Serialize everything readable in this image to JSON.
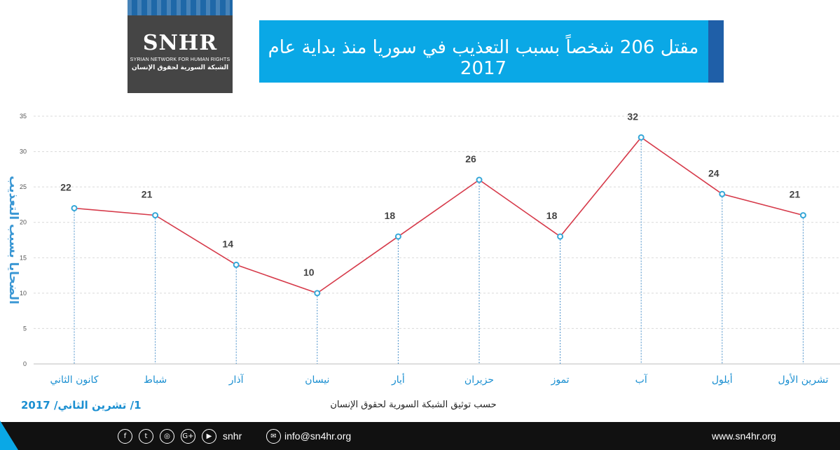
{
  "logo": {
    "name": "SNHR",
    "english": "SYRIAN NETWORK FOR HUMAN RIGHTS",
    "arabic": "الشبكة السورية لحقوق الإنسان"
  },
  "title": "مقتل 206 شخصاً بسبب التعذيب في سوريا منذ بداية عام 2017",
  "date_label": "1/ تشرين الثاني/ 2017",
  "source_label": "حسب توثيق الشبكة السورية لحقوق الإنسان",
  "footer": {
    "social_handle": "snhr",
    "email": "info@sn4hr.org",
    "website": "www.sn4hr.org",
    "social_icons": [
      "facebook-icon",
      "twitter-icon",
      "instagram-icon",
      "google-plus-icon",
      "youtube-icon"
    ]
  },
  "colors": {
    "line": "#d63a4a",
    "marker": "#35a7d8",
    "axis_title": "#3a97d4",
    "title_band": "#0aa8e6"
  },
  "chart_data": {
    "type": "line",
    "ylabel": "الضحايا بسبب التعذيب",
    "ylim": [
      0,
      35
    ],
    "yticks": [
      0,
      5,
      10,
      15,
      20,
      25,
      30,
      35
    ],
    "grid": true,
    "categories": [
      "كانون الثاني",
      "شباط",
      "آذار",
      "نيسان",
      "أيار",
      "حزيران",
      "تموز",
      "آب",
      "أيلول",
      "تشرين الأول"
    ],
    "series": [
      {
        "values": [
          22,
          21,
          14,
          10,
          18,
          26,
          18,
          32,
          24,
          21
        ]
      }
    ],
    "data_labels": [
      "22",
      "21",
      "14",
      "10",
      "18",
      "26",
      "18",
      "32",
      "24",
      "21"
    ]
  }
}
